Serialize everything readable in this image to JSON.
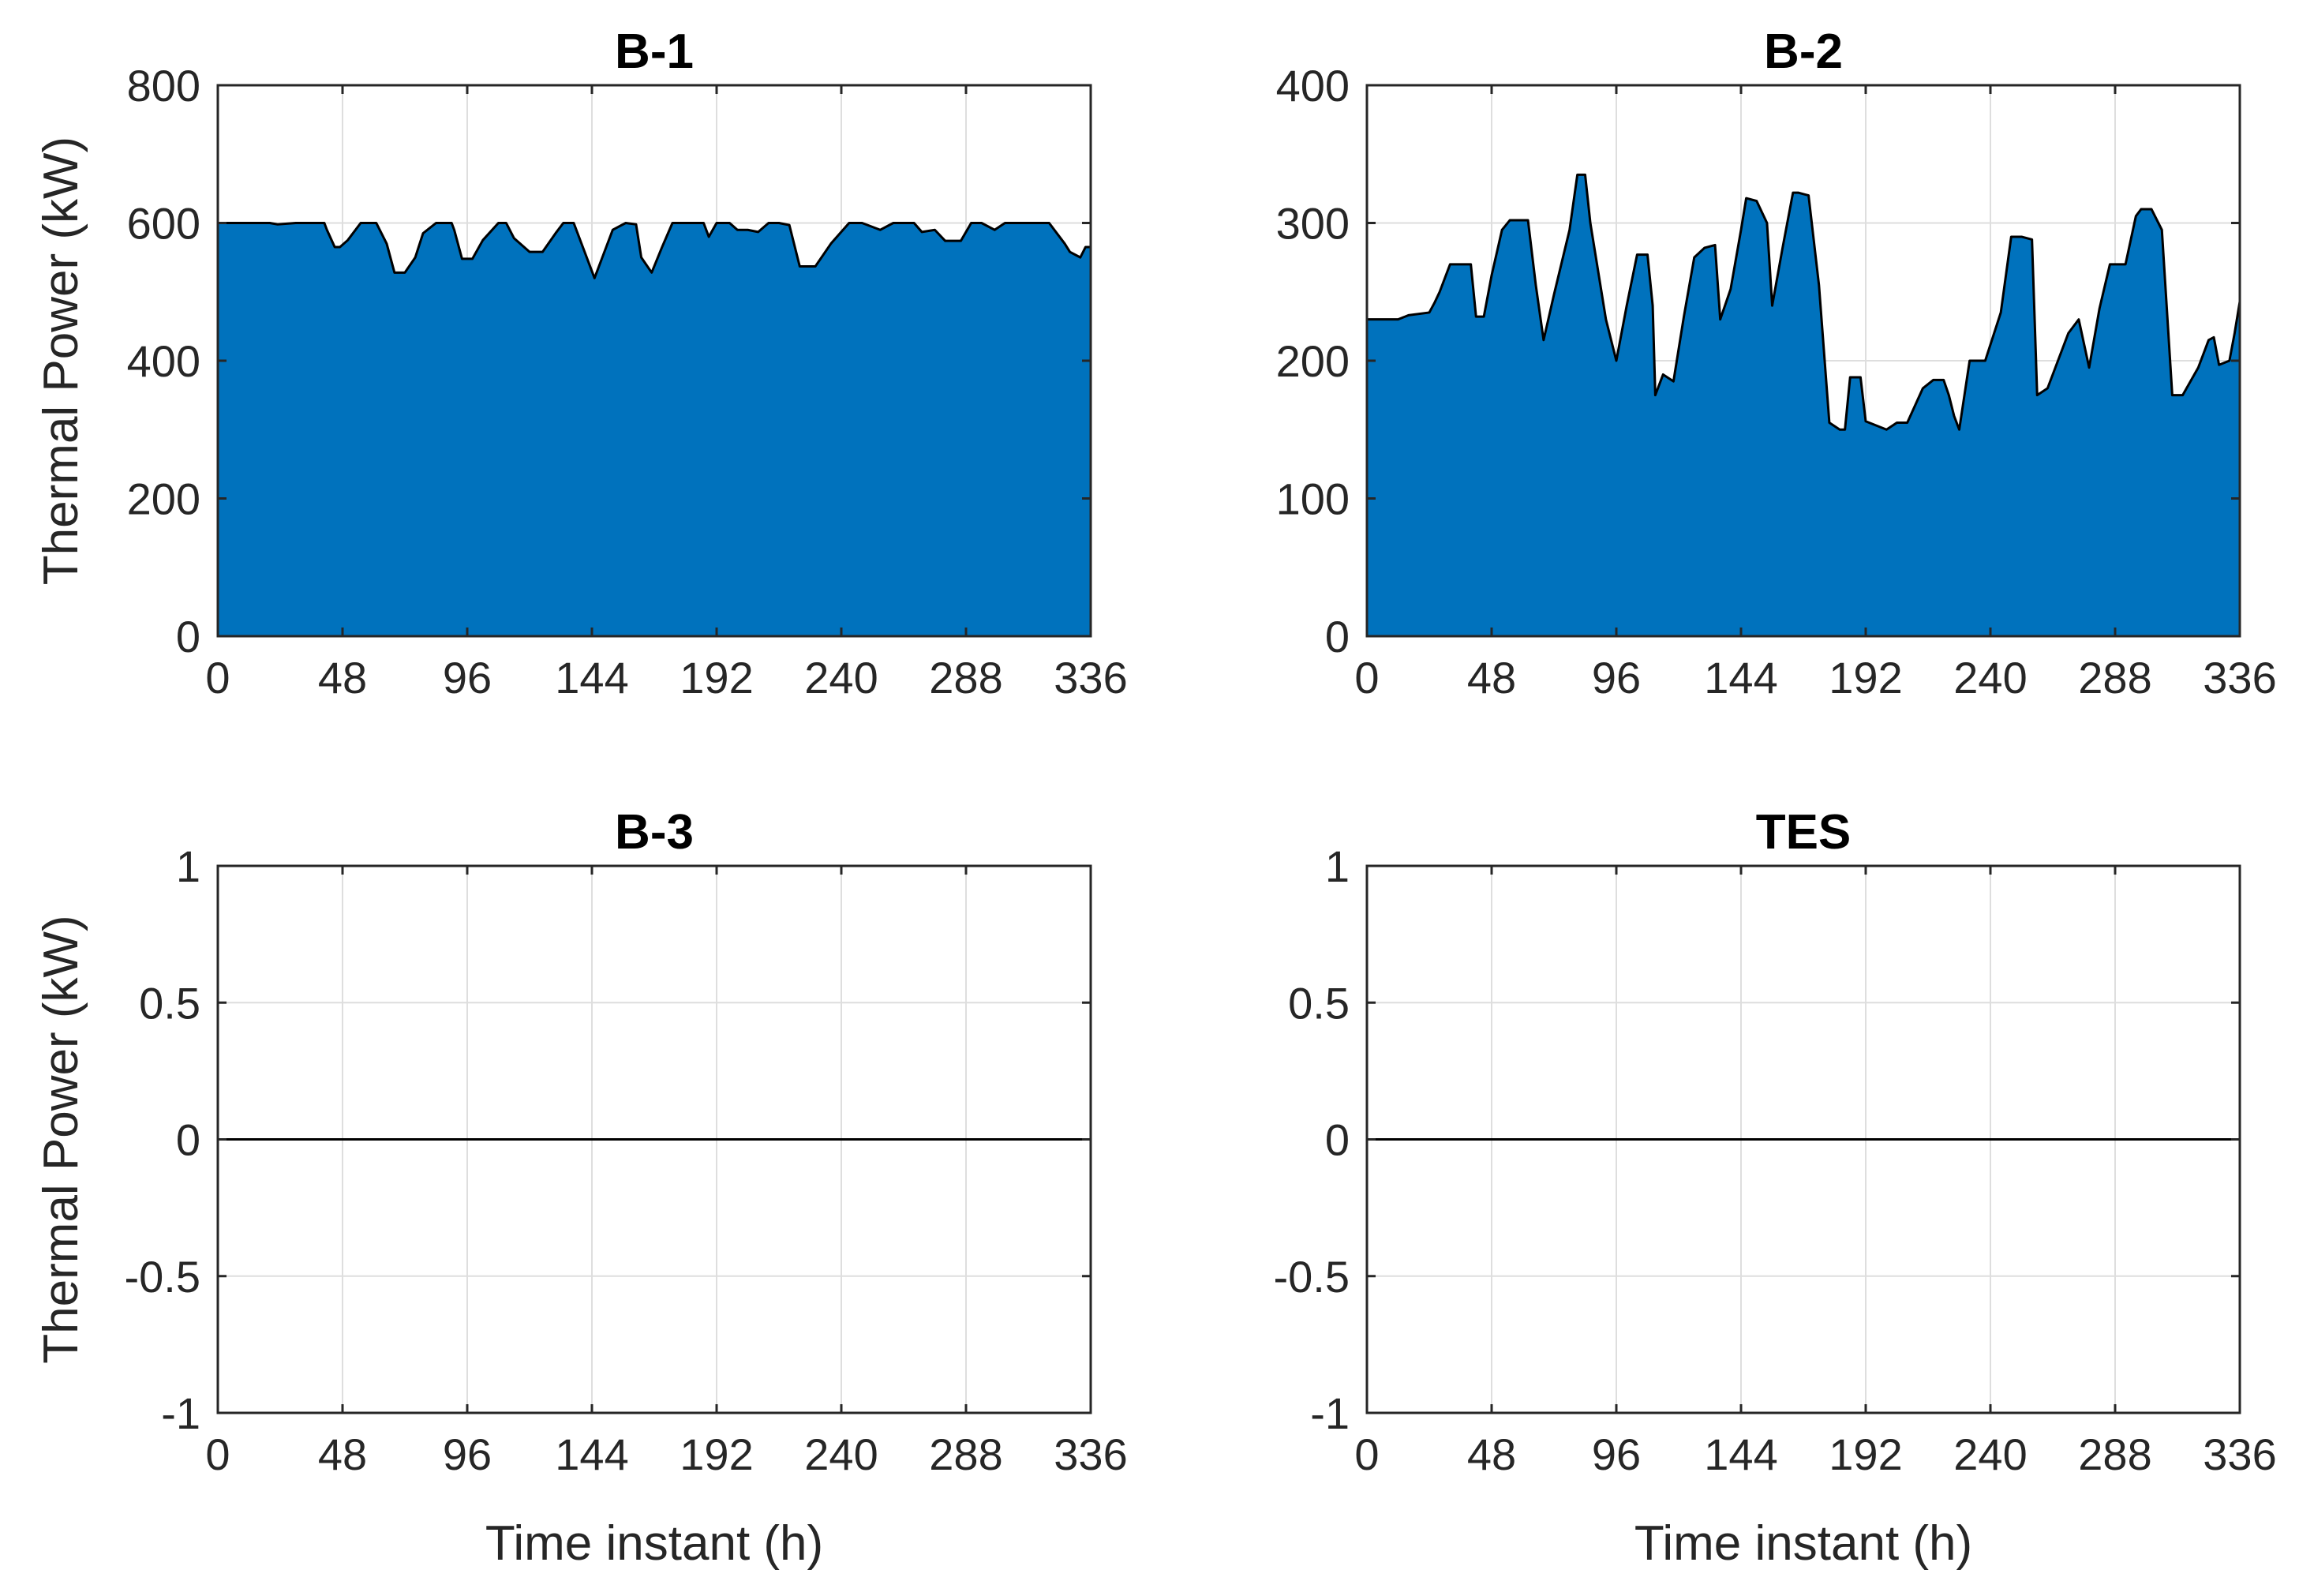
{
  "colors": {
    "area_fill": "#0072bd",
    "outline": "#000000",
    "grid": "#dedede",
    "axes": "#262626"
  },
  "chart_data": [
    {
      "type": "area",
      "title": "B-1",
      "ylabel": "Thermal Power (kW)",
      "xlabel": "",
      "xlim": [
        0,
        336
      ],
      "ylim": [
        0,
        800
      ],
      "xticks": [
        "0",
        "48",
        "96",
        "144",
        "192",
        "240",
        "288",
        "336"
      ],
      "yticks": [
        "0",
        "200",
        "400",
        "600",
        "800"
      ],
      "grid": true,
      "x": [
        0,
        20,
        23,
        30,
        41,
        42,
        45,
        47,
        50,
        55,
        61,
        65,
        68,
        72,
        76,
        79,
        84,
        90,
        91,
        94,
        98,
        102,
        108,
        111,
        114,
        120,
        125,
        130,
        133,
        137,
        141,
        145,
        148,
        152,
        157,
        161,
        163,
        167,
        171,
        175,
        183,
        187,
        189,
        192,
        197,
        200,
        204,
        208,
        212,
        216,
        220,
        224,
        230,
        236,
        243,
        248,
        255,
        260,
        268,
        271,
        276,
        280,
        286,
        290,
        294,
        299,
        303,
        307,
        310,
        315,
        320,
        326,
        328,
        332,
        334,
        336
      ],
      "series": [
        {
          "values": [
            600,
            600,
            598,
            600,
            600,
            590,
            565,
            565,
            575,
            600,
            600,
            570,
            528,
            528,
            550,
            585,
            600,
            600,
            590,
            548,
            548,
            575,
            600,
            600,
            578,
            558,
            558,
            585,
            600,
            600,
            560,
            520,
            550,
            590,
            600,
            598,
            550,
            528,
            565,
            600,
            600,
            600,
            580,
            600,
            600,
            590,
            590,
            587,
            600,
            600,
            597,
            537,
            537,
            570,
            600,
            600,
            590,
            600,
            600,
            587,
            590,
            574,
            574,
            600,
            600,
            590,
            600,
            600,
            600,
            600,
            600,
            570,
            558,
            550,
            565,
            565
          ]
        }
      ]
    },
    {
      "type": "area",
      "title": "B-2",
      "ylabel": "",
      "xlabel": "",
      "xlim": [
        0,
        336
      ],
      "ylim": [
        0,
        400
      ],
      "xticks": [
        "0",
        "48",
        "96",
        "144",
        "192",
        "240",
        "288",
        "336"
      ],
      "yticks": [
        "0",
        "100",
        "200",
        "300",
        "400"
      ],
      "grid": true,
      "x": [
        0,
        12,
        16,
        24,
        26,
        28,
        32,
        40,
        42,
        45,
        48,
        52,
        55,
        62,
        65,
        68,
        72,
        78,
        81,
        84,
        86,
        92,
        96,
        100,
        104,
        108,
        110,
        111,
        114,
        118,
        122,
        126,
        130,
        134,
        136,
        140,
        144,
        146,
        150,
        154,
        156,
        160,
        164,
        166,
        170,
        174,
        178,
        182,
        184,
        186,
        190,
        192,
        200,
        204,
        208,
        214,
        218,
        222,
        224,
        226,
        228,
        232,
        238,
        244,
        248,
        252,
        256,
        258,
        262,
        266,
        270,
        274,
        278,
        282,
        286,
        292,
        296,
        298,
        302,
        306,
        310,
        314,
        320,
        324,
        326,
        328,
        332,
        334,
        336
      ],
      "series": [
        {
          "values": [
            230,
            230,
            233,
            235,
            242,
            250,
            270,
            270,
            232,
            232,
            262,
            295,
            302,
            302,
            255,
            215,
            248,
            295,
            335,
            335,
            300,
            230,
            200,
            240,
            277,
            277,
            240,
            175,
            190,
            185,
            232,
            275,
            282,
            284,
            230,
            252,
            295,
            318,
            316,
            300,
            240,
            282,
            322,
            322,
            320,
            255,
            155,
            150,
            150,
            188,
            188,
            156,
            150,
            155,
            155,
            180,
            186,
            186,
            175,
            160,
            150,
            200,
            200,
            235,
            290,
            290,
            288,
            175,
            180,
            200,
            220,
            230,
            195,
            238,
            270,
            270,
            305,
            310,
            310,
            295,
            175,
            175,
            195,
            215,
            217,
            197,
            200,
            220,
            243
          ]
        }
      ]
    },
    {
      "type": "line",
      "title": "B-3",
      "ylabel": "Thermal Power (kW)",
      "xlabel": "Time instant (h)",
      "xlim": [
        0,
        336
      ],
      "ylim": [
        -1,
        1
      ],
      "xticks": [
        "0",
        "48",
        "96",
        "144",
        "192",
        "240",
        "288",
        "336"
      ],
      "yticks": [
        "-1",
        "-0.5",
        "0",
        "0.5",
        "1"
      ],
      "grid": true,
      "x": [
        0,
        336
      ],
      "series": [
        {
          "values": [
            0,
            0
          ]
        }
      ]
    },
    {
      "type": "line",
      "title": "TES",
      "ylabel": "",
      "xlabel": "Time instant (h)",
      "xlim": [
        0,
        336
      ],
      "ylim": [
        -1,
        1
      ],
      "xticks": [
        "0",
        "48",
        "96",
        "144",
        "192",
        "240",
        "288",
        "336"
      ],
      "yticks": [
        "-1",
        "-0.5",
        "0",
        "0.5",
        "1"
      ],
      "grid": true,
      "x": [
        0,
        336
      ],
      "series": [
        {
          "values": [
            0,
            0
          ]
        }
      ]
    }
  ]
}
